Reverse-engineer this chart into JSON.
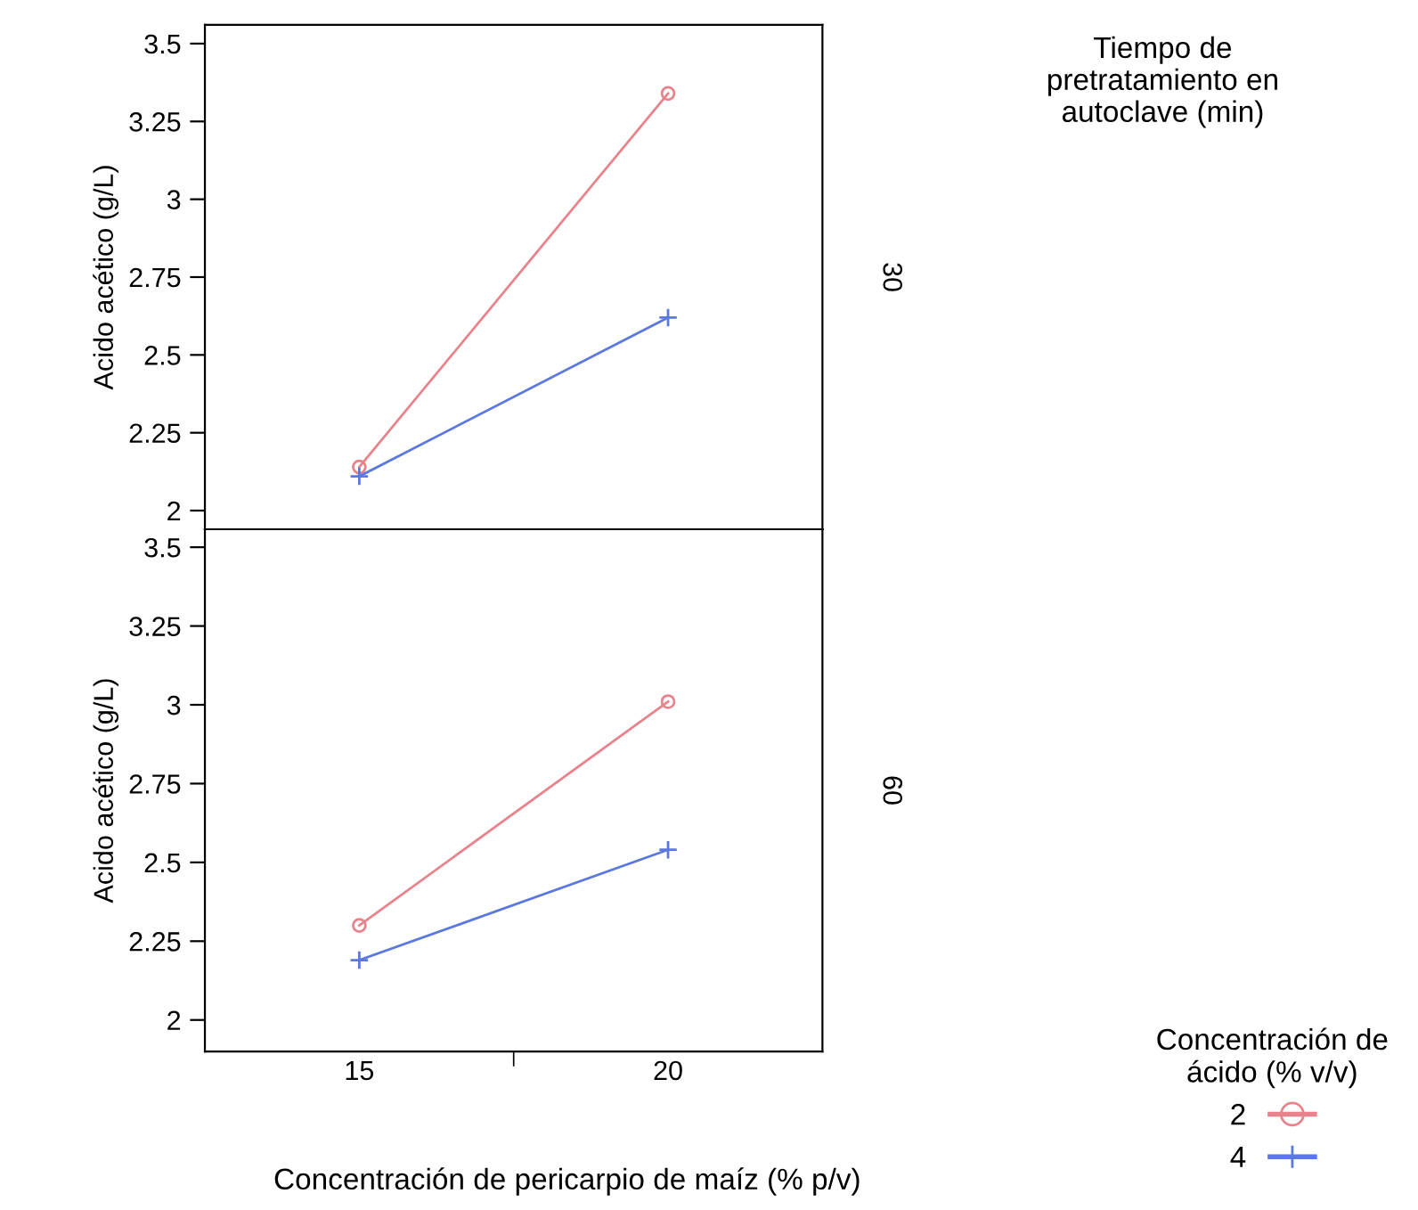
{
  "chart_data": [
    {
      "type": "line",
      "categories": [
        "15",
        "20"
      ],
      "ylabel": "Acido acético (g/L)",
      "ylim": [
        1.94,
        3.56
      ],
      "yticks": [
        2,
        2.25,
        2.5,
        2.75,
        3,
        3.25,
        3.5
      ],
      "tick_labels": "y",
      "grid": false,
      "legend": "bottom right",
      "legend_title": "Concentración de\nácido (% v/v)",
      "annotations": [
        "Tiempo de\npretratamiento en\nautoclave (min)",
        "30"
      ],
      "series": [
        {
          "name": "2",
          "color": "#e8838c",
          "marker": "circle",
          "values": [
            2.14,
            3.34
          ]
        },
        {
          "name": "4",
          "color": "#5b78e0",
          "marker": "cross",
          "values": [
            2.11,
            2.62
          ]
        }
      ]
    },
    {
      "type": "line",
      "categories": [
        "15",
        "20"
      ],
      "ylabel": "Acido acético (g/L)",
      "xlabel": "Concentración de pericarpio de maíz (% p/v)",
      "ylim": [
        1.9,
        3.557
      ],
      "yticks": [
        2,
        2.25,
        2.5,
        2.75,
        3,
        3.25,
        3.5
      ],
      "grid": false,
      "annotations": [
        "60"
      ],
      "series": [
        {
          "name": "2",
          "color": "#e8838c",
          "marker": "circle",
          "values": [
            2.3,
            3.01
          ]
        },
        {
          "name": "4",
          "color": "#5b78e0",
          "marker": "cross",
          "values": [
            2.19,
            2.54
          ]
        }
      ]
    }
  ]
}
